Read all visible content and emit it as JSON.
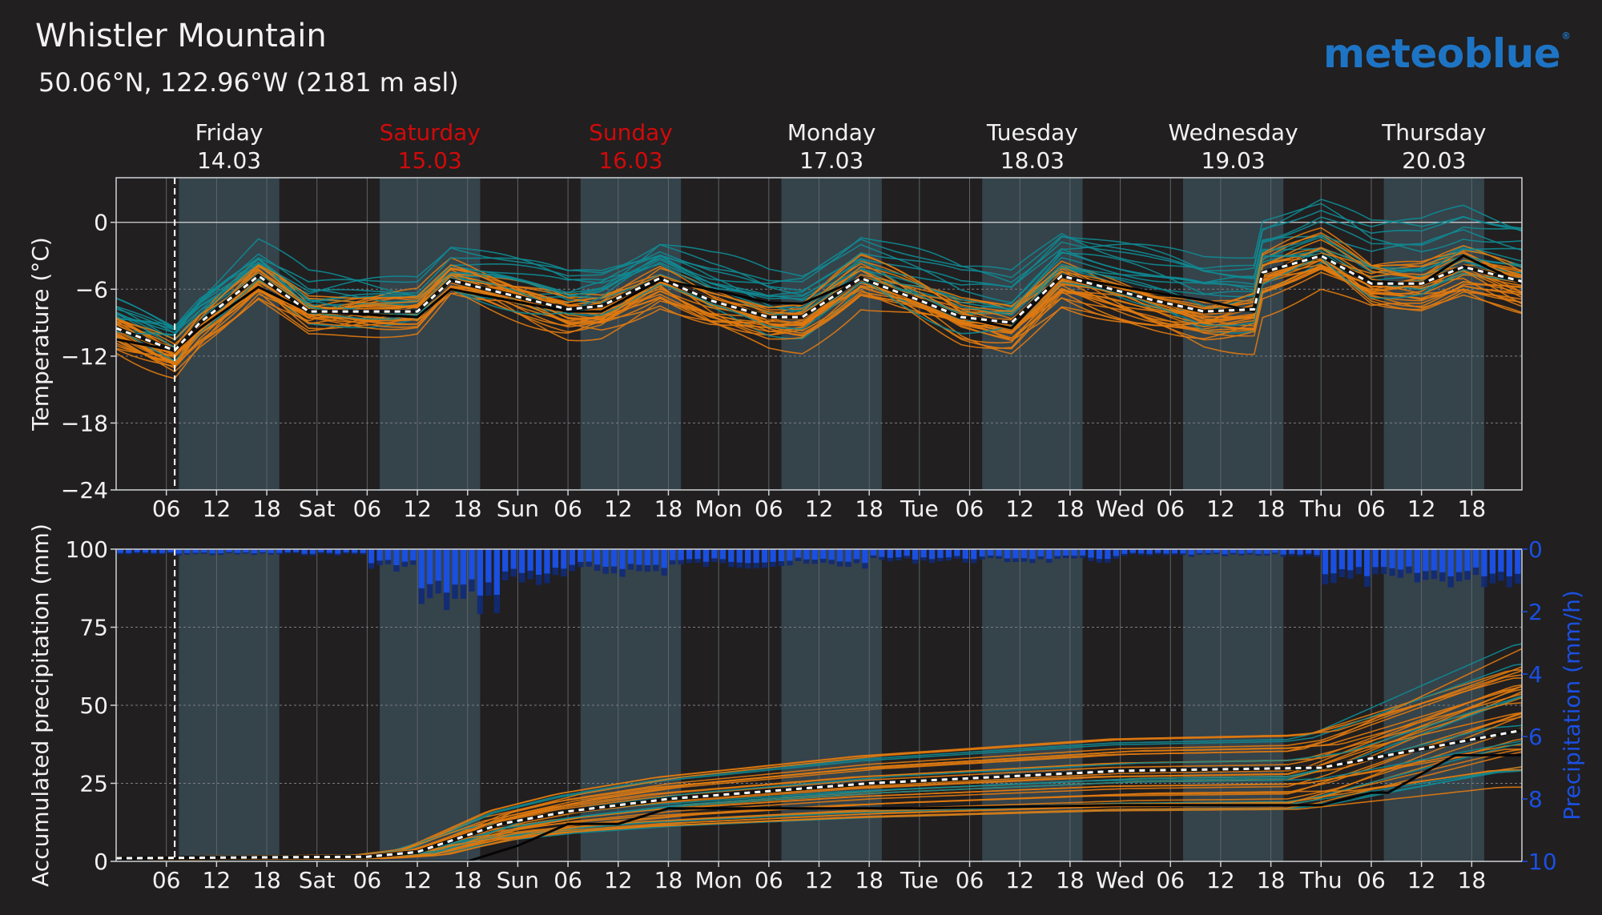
{
  "header": {
    "title": "Whistler Mountain",
    "subtitle": "50.06°N, 122.96°W (2181 m asl)",
    "logo": "meteoblue",
    "logo_mark": "®"
  },
  "colors": {
    "background": "#211f20",
    "day_band": "#35434b",
    "text": "#f2f2f2",
    "weekend": "#d10a0a",
    "orange_member": "#e07a10",
    "teal_member": "#0f8a92",
    "precip_bar": "#1a4fe0",
    "logo": "#1e74c4"
  },
  "chart_data": [
    {
      "type": "line",
      "panel": "temperature",
      "ylabel": "Temperature (°C)",
      "ylim": [
        -24,
        4
      ],
      "yticks": [
        0,
        -6,
        -12,
        -18,
        -24
      ],
      "grid": true,
      "day_headers": [
        {
          "day": "Friday",
          "date": "14.03",
          "weekend": false
        },
        {
          "day": "Saturday",
          "date": "15.03",
          "weekend": true
        },
        {
          "day": "Sunday",
          "date": "16.03",
          "weekend": true
        },
        {
          "day": "Monday",
          "date": "17.03",
          "weekend": false
        },
        {
          "day": "Tuesday",
          "date": "18.03",
          "weekend": false
        },
        {
          "day": "Wednesday",
          "date": "19.03",
          "weekend": false
        },
        {
          "day": "Thursday",
          "date": "20.03",
          "weekend": false
        }
      ],
      "xticks": [
        "06",
        "12",
        "18",
        "Sat",
        "06",
        "12",
        "18",
        "Sun",
        "06",
        "12",
        "18",
        "Mon",
        "06",
        "12",
        "18",
        "Tue",
        "06",
        "12",
        "18",
        "Wed",
        "06",
        "12",
        "18",
        "Thu",
        "06",
        "12",
        "18"
      ],
      "now_marker_hour": 7,
      "series": [
        {
          "role": "median",
          "hours": [
            0,
            7,
            10,
            17,
            23,
            36,
            40,
            54,
            58,
            65,
            71,
            78,
            82,
            89,
            96,
            101,
            107,
            113,
            124,
            130,
            136,
            137,
            144,
            150,
            156,
            161,
            168
          ],
          "values": [
            -9.5,
            -11.5,
            -9,
            -4.8,
            -8,
            -8,
            -5.2,
            -7.8,
            -7.5,
            -5,
            -7,
            -8.5,
            -8.5,
            -5,
            -7,
            -8.5,
            -9,
            -4.8,
            -7,
            -8,
            -7.8,
            -4.5,
            -3,
            -5.5,
            -5.5,
            -4,
            -5.3
          ]
        },
        {
          "role": "control",
          "hours": [
            0,
            7,
            10,
            17,
            23,
            36,
            40,
            54,
            58,
            65,
            71,
            78,
            82,
            89,
            96,
            101,
            107,
            113,
            124,
            130,
            136,
            137,
            144,
            150,
            156,
            161,
            168
          ],
          "values": [
            -10.5,
            -11.5,
            -9.5,
            -5.8,
            -8,
            -8.5,
            -6,
            -8,
            -8,
            -5.2,
            -6,
            -7.2,
            -7.3,
            -5,
            -7,
            -8.5,
            -9.5,
            -4.8,
            -6.3,
            -7,
            -8,
            -4.5,
            -3,
            -5.3,
            -5.5,
            -3,
            -5.5
          ]
        }
      ]
    },
    {
      "type": "line",
      "panel": "precipitation",
      "ylabel": "Accumulated precipitation (mm)",
      "ylim": [
        0,
        100
      ],
      "yticks": [
        100,
        75,
        50,
        25,
        0
      ],
      "y2label": "Precipitation (mm/h)",
      "y2ticks": [
        0,
        2,
        4,
        6,
        8,
        10
      ],
      "grid": true,
      "xticks": [
        "06",
        "12",
        "18",
        "Sat",
        "06",
        "12",
        "18",
        "Sun",
        "06",
        "12",
        "18",
        "Mon",
        "06",
        "12",
        "18",
        "Tue",
        "06",
        "12",
        "18",
        "Wed",
        "06",
        "12",
        "18",
        "Thu",
        "06",
        "12",
        "18"
      ],
      "series": [
        {
          "role": "median",
          "hours": [
            0,
            30,
            36,
            46,
            54,
            66,
            90,
            120,
            144,
            168
          ],
          "values": [
            1,
            1.5,
            3,
            12,
            16,
            20,
            25,
            29,
            30,
            42
          ]
        },
        {
          "role": "control",
          "hours": [
            0,
            36,
            42,
            48,
            54,
            60,
            66,
            96,
            120,
            144,
            150,
            152,
            160,
            168
          ],
          "values": [
            0,
            0,
            0,
            5,
            12,
            12,
            17,
            17,
            18,
            18,
            22,
            22,
            34,
            34
          ]
        }
      ]
    }
  ]
}
